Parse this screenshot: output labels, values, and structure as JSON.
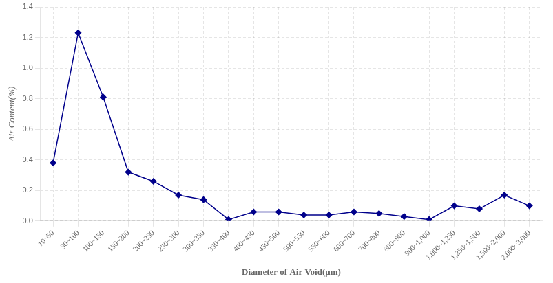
{
  "chart_data": {
    "type": "line",
    "categories": [
      "10~50",
      "50~100",
      "100~150",
      "150~200",
      "200~250",
      "250~300",
      "300~350",
      "350~400",
      "400~450",
      "450~500",
      "500~550",
      "550~600",
      "600~700",
      "700~800",
      "800~900",
      "900~1,000",
      "1,000~1,250",
      "1,250~1,500",
      "1,500~2,000",
      "2,000~3,000"
    ],
    "values": [
      0.38,
      1.23,
      0.81,
      0.32,
      0.26,
      0.17,
      0.14,
      0.01,
      0.06,
      0.06,
      0.04,
      0.04,
      0.06,
      0.05,
      0.03,
      0.01,
      0.1,
      0.08,
      0.17,
      0.1
    ],
    "color": "#00008B",
    "marker": "diamond",
    "xlabel": "Diameter of Air Void(μm)",
    "ylabel": "Air Content(%)",
    "ylim": [
      0,
      1.4
    ],
    "yticks": [
      {
        "value": 0,
        "label": "0.0"
      },
      0.2,
      0.4,
      0.6,
      0.8,
      {
        "value": 1,
        "label": "1.0"
      },
      1.2,
      1.4
    ],
    "grid": true
  }
}
